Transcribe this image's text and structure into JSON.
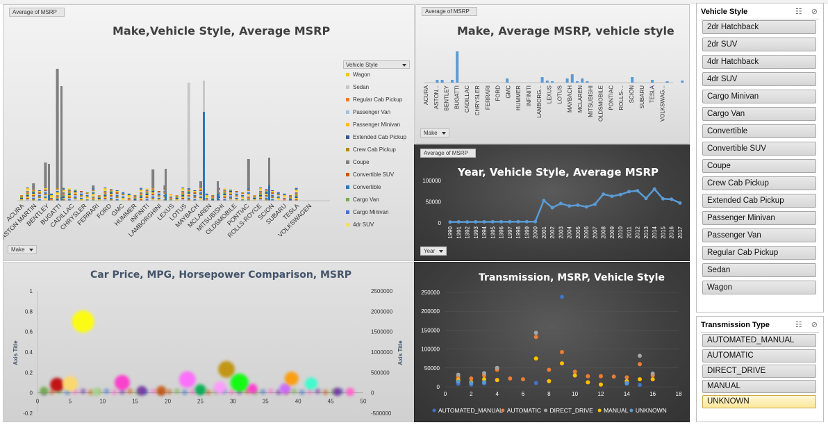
{
  "chart1": {
    "field_button": "Average of MSRP",
    "title": "Make,Vehicle Style, Average MSRP",
    "axis_button": "Make",
    "legend_title": "Vehicle Style",
    "legend": [
      {
        "name": "Wagon",
        "color": "#f5c518"
      },
      {
        "name": "Sedan",
        "color": "#c8c8c8"
      },
      {
        "name": "Regular Cab Pickup",
        "color": "#ed7d31"
      },
      {
        "name": "Passenger Van",
        "color": "#9dc3e6"
      },
      {
        "name": "Passenger Minivan",
        "color": "#ffc000"
      },
      {
        "name": "Extended Cab Pickup",
        "color": "#2f5597"
      },
      {
        "name": "Crew Cab Pickup",
        "color": "#b8860b"
      },
      {
        "name": "Coupe",
        "color": "#7f7f7f"
      },
      {
        "name": "Convertible SUV",
        "color": "#c55a11"
      },
      {
        "name": "Convertible",
        "color": "#2e75b6"
      },
      {
        "name": "Cargo Van",
        "color": "#70ad47"
      },
      {
        "name": "Cargo Minivan",
        "color": "#4472c4"
      },
      {
        "name": "4dr SUV",
        "color": "#ffd966"
      }
    ],
    "x_labels": [
      "ACURA",
      "ASTON MARTIN",
      "BENTLEY",
      "BUGATTI",
      "CADILLAC",
      "CHRYSLER",
      "FERRARI",
      "FORD",
      "GMC",
      "HUMMER",
      "INFINITI",
      "LAMBORGHINI",
      "LEXUS",
      "LOTUS",
      "MAYBACH",
      "MCLAREN",
      "MITSUBISHI",
      "OLDSMOBILE",
      "PONTIAC",
      "ROLLS-ROYCE",
      "SCION",
      "SUBARU",
      "TESLA",
      "VOLKSWAGEN"
    ]
  },
  "chart2": {
    "field_button": "Average of MSRP",
    "title": "Make, Average MSRP, vehicle style",
    "axis_button": "Make",
    "x_labels": [
      "ACURA",
      "ASTON...",
      "BENTLEY",
      "BUGATTI",
      "CADILLAC",
      "CHRYSLER",
      "FERRARI",
      "FORD",
      "GMC",
      "HUMMER",
      "INFINITI",
      "LAMBORG...",
      "LEXUS",
      "LOTUS",
      "MAYBACH",
      "MCLAREN",
      "MITSUBISHI",
      "OLDSMOBILE",
      "PONTIAC",
      "ROLLS-...",
      "SCION",
      "SUBARU",
      "TESLA",
      "VOLKSWAG..."
    ]
  },
  "chart3": {
    "field_button": "Average of MSRP",
    "title": "Year, Vehicle Style, Average MSRP",
    "axis_button": "Year",
    "y_ticks": [
      "100000",
      "50000",
      "0"
    ],
    "chart_data": {
      "type": "line",
      "x": [
        "1990",
        "1991",
        "1992",
        "1993",
        "1994",
        "1995",
        "1996",
        "1997",
        "1998",
        "1999",
        "2000",
        "2001",
        "2002",
        "2003",
        "2004",
        "2005",
        "2006",
        "2007",
        "2008",
        "2009",
        "2010",
        "2011",
        "2012",
        "2013",
        "2014",
        "2015",
        "2016",
        "2017"
      ],
      "series": [
        {
          "values": [
            2000,
            2500,
            2300,
            2400,
            2500,
            2600,
            2700,
            2600,
            2800,
            2900,
            3000,
            53000,
            36000,
            46000,
            40000,
            42000,
            38000,
            44000,
            68000,
            63000,
            67000,
            74000,
            76000,
            58000,
            80000,
            57000,
            56000,
            47000
          ]
        }
      ],
      "ylim": [
        0,
        110000
      ],
      "color": "#5b9bd5"
    }
  },
  "chart4": {
    "title": "Car Price, MPG, Horsepower Comparison, MSRP",
    "y_left_label": "Axis Title",
    "y_right_label": "Axis Title",
    "y_left_ticks": [
      "1",
      "0.8",
      "0.6",
      "0.4",
      "0.2",
      "0",
      "-0.2"
    ],
    "y_right_ticks": [
      "2500000",
      "2000000",
      "1500000",
      "1000000",
      "500000",
      "0",
      "-500000"
    ],
    "x_ticks": [
      "0",
      "5",
      "10",
      "15",
      "20",
      "25",
      "30",
      "35",
      "40",
      "45",
      "50"
    ],
    "chart_data": {
      "type": "scatter",
      "xlim": [
        0,
        50
      ],
      "ylim": [
        -0.2,
        1
      ],
      "bubbles": [
        {
          "x": 7,
          "y": 0.7,
          "r": 16,
          "color": "#ffff00"
        },
        {
          "x": 3,
          "y": 0.08,
          "r": 10,
          "color": "#c00000"
        },
        {
          "x": 5,
          "y": 0.09,
          "r": 11,
          "color": "#ffd966"
        },
        {
          "x": 1,
          "y": 0.02,
          "r": 6,
          "color": "#70ad47"
        },
        {
          "x": 9,
          "y": 0.01,
          "r": 6,
          "color": "#a9d18e"
        },
        {
          "x": 13,
          "y": 0.1,
          "r": 11,
          "color": "#ff33cc"
        },
        {
          "x": 16,
          "y": 0.02,
          "r": 7,
          "color": "#7030a0"
        },
        {
          "x": 19,
          "y": 0.02,
          "r": 7,
          "color": "#c55a11"
        },
        {
          "x": 23,
          "y": 0.13,
          "r": 12,
          "color": "#ff66ff"
        },
        {
          "x": 25,
          "y": 0.03,
          "r": 8,
          "color": "#00b050"
        },
        {
          "x": 28,
          "y": 0.05,
          "r": 9,
          "color": "#ff99ff"
        },
        {
          "x": 29,
          "y": 0.23,
          "r": 12,
          "color": "#bf9000"
        },
        {
          "x": 31,
          "y": 0.1,
          "r": 13,
          "color": "#00ff00"
        },
        {
          "x": 33,
          "y": 0.04,
          "r": 7,
          "color": "#ff33cc"
        },
        {
          "x": 38,
          "y": 0.04,
          "r": 8,
          "color": "#cc66ff"
        },
        {
          "x": 39,
          "y": 0.14,
          "r": 10,
          "color": "#ff9900"
        },
        {
          "x": 42,
          "y": 0.09,
          "r": 9,
          "color": "#33ffcc"
        },
        {
          "x": 46,
          "y": 0.01,
          "r": 6,
          "color": "#7030a0"
        },
        {
          "x": 48,
          "y": 0.01,
          "r": 6,
          "color": "#ff66cc"
        }
      ]
    }
  },
  "chart5": {
    "title": "Transmission, MSRP, Vehicle Style",
    "y_ticks": [
      "250000",
      "200000",
      "150000",
      "100000",
      "50000",
      "0"
    ],
    "x_ticks": [
      "0",
      "2",
      "4",
      "6",
      "8",
      "10",
      "12",
      "14",
      "16",
      "18"
    ],
    "chart_data": {
      "type": "scatter",
      "xlim": [
        0,
        18
      ],
      "ylim": [
        0,
        250000
      ],
      "series": [
        {
          "name": "AUTOMATED_MANUAL",
          "color": "#4472c4",
          "points": [
            [
              1,
              8000
            ],
            [
              2,
              6000
            ],
            [
              3,
              9000
            ],
            [
              7,
              10000
            ],
            [
              9,
              238000
            ],
            [
              14,
              8000
            ],
            [
              15,
              5000
            ]
          ]
        },
        {
          "name": "AUTOMATIC",
          "color": "#ed7d31",
          "points": [
            [
              1,
              25000
            ],
            [
              2,
              22000
            ],
            [
              3,
              30000
            ],
            [
              4,
              45000
            ],
            [
              5,
              22000
            ],
            [
              6,
              20000
            ],
            [
              7,
              132000
            ],
            [
              8,
              45000
            ],
            [
              9,
              92000
            ],
            [
              10,
              40000
            ],
            [
              11,
              28000
            ],
            [
              12,
              28000
            ],
            [
              13,
              27000
            ],
            [
              14,
              25000
            ],
            [
              15,
              60000
            ],
            [
              16,
              30000
            ]
          ]
        },
        {
          "name": "DIRECT_DRIVE",
          "color": "#a5a5a5",
          "points": [
            [
              1,
              32000
            ],
            [
              3,
              36000
            ],
            [
              4,
              50000
            ],
            [
              7,
              143000
            ],
            [
              15,
              82000
            ],
            [
              16,
              35000
            ]
          ]
        },
        {
          "name": "MANUAL",
          "color": "#ffc000",
          "points": [
            [
              1,
              18000
            ],
            [
              2,
              12000
            ],
            [
              3,
              20000
            ],
            [
              4,
              18000
            ],
            [
              7,
              75000
            ],
            [
              8,
              15000
            ],
            [
              9,
              62000
            ],
            [
              10,
              30000
            ],
            [
              11,
              12000
            ],
            [
              12,
              6000
            ],
            [
              14,
              15000
            ],
            [
              15,
              20000
            ],
            [
              16,
              20000
            ]
          ]
        },
        {
          "name": "UNKNOWN",
          "color": "#5b9bd5",
          "points": [
            [
              1,
              14000
            ],
            [
              2,
              10000
            ],
            [
              3,
              12000
            ],
            [
              14,
              10000
            ]
          ]
        }
      ]
    }
  },
  "slicer_style": {
    "title": "Vehicle Style",
    "items": [
      "2dr Hatchback",
      "2dr SUV",
      "4dr Hatchback",
      "4dr SUV",
      "Cargo Minivan",
      "Cargo Van",
      "Convertible",
      "Convertible SUV",
      "Coupe",
      "Crew Cab Pickup",
      "Extended Cab Pickup",
      "Passenger Minivan",
      "Passenger Van",
      "Regular Cab Pickup",
      "Sedan",
      "Wagon"
    ]
  },
  "slicer_trans": {
    "title": "Transmission Type",
    "items": [
      "AUTOMATED_MANUAL",
      "AUTOMATIC",
      "DIRECT_DRIVE",
      "MANUAL",
      "UNKNOWN"
    ],
    "selected": "UNKNOWN"
  }
}
